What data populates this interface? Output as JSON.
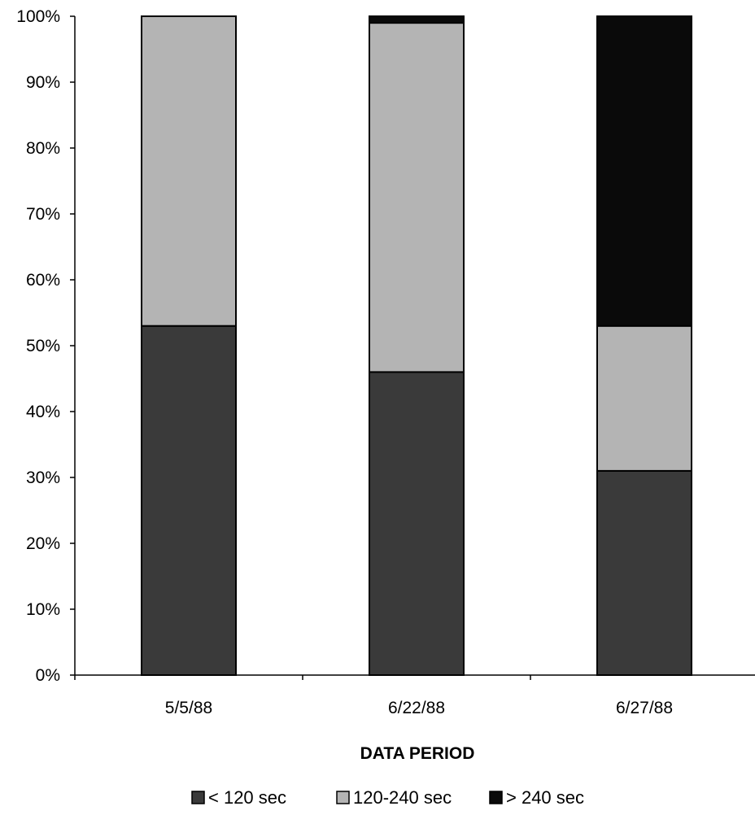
{
  "chart_data": {
    "type": "bar",
    "stacked": true,
    "percent": true,
    "categories": [
      "5/5/88",
      "6/22/88",
      "6/27/88"
    ],
    "series": [
      {
        "name": "< 120 sec",
        "color": "#3a3a3a",
        "values": [
          53,
          46,
          31
        ]
      },
      {
        "name": "120-240 sec",
        "color": "#b4b4b4",
        "values": [
          47,
          53,
          22
        ]
      },
      {
        "name": "> 240 sec",
        "color": "#0a0a0a",
        "values": [
          0,
          1,
          47
        ]
      }
    ],
    "xlabel": "DATA PERIOD",
    "ylabel": "",
    "ylim": [
      0,
      100
    ],
    "yticks": [
      "0%",
      "10%",
      "20%",
      "30%",
      "40%",
      "50%",
      "60%",
      "70%",
      "80%",
      "90%",
      "100%"
    ],
    "grid": false,
    "legend_position": "bottom"
  }
}
